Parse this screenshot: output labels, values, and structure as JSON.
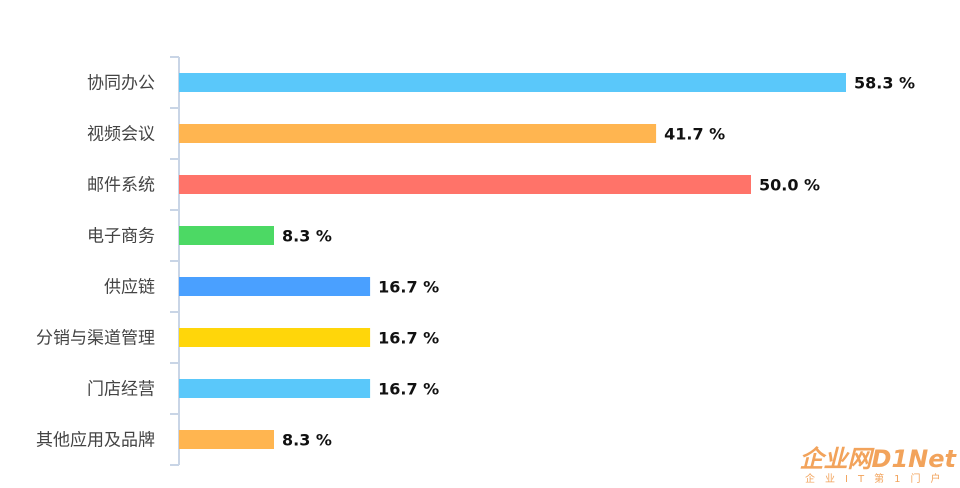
{
  "chart_data": {
    "type": "bar",
    "orientation": "horizontal",
    "categories": [
      "协同办公",
      "视频会议",
      "邮件系统",
      "电子商务",
      "供应链",
      "分销与渠道管理",
      "门店经营",
      "其他应用及品牌"
    ],
    "values": [
      58.3,
      41.7,
      50.0,
      8.3,
      16.7,
      16.7,
      16.7,
      8.3
    ],
    "value_labels": [
      "58.3 %",
      "41.7 %",
      "50.0 %",
      "8.3 %",
      "16.7 %",
      "16.7 %",
      "16.7 %",
      "8.3 %"
    ],
    "colors": [
      "#5ac8fa",
      "#ffb550",
      "#ff7369",
      "#4cd964",
      "#4aa0ff",
      "#ffd60a",
      "#5ac8fa",
      "#ffb550"
    ],
    "axis_color": "#c9d5e6",
    "xlim": [
      0,
      58.3
    ],
    "grid": false,
    "legend": "none"
  },
  "watermark": {
    "main": "企业网D1Net",
    "sub": "企业IT第1门户"
  }
}
